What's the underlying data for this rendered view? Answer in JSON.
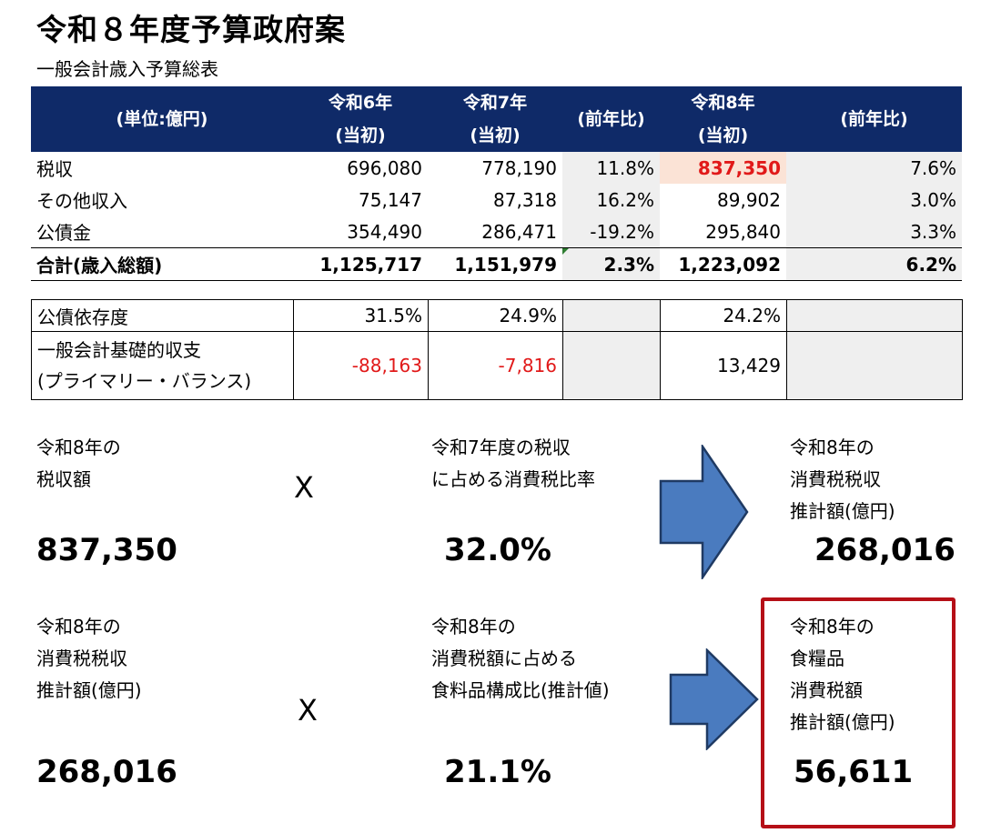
{
  "page": {
    "title": "令和８年度予算政府案",
    "subtitle": "一般会計歳入予算総表"
  },
  "main_table": {
    "headers": [
      {
        "line1": "(単位:億円)",
        "line2": ""
      },
      {
        "line1": "令和6年",
        "line2": "(当初)"
      },
      {
        "line1": "令和7年",
        "line2": "(当初)"
      },
      {
        "line1": "(前年比)",
        "line2": ""
      },
      {
        "line1": "令和8年",
        "line2": "(当初)"
      },
      {
        "line1": "(前年比)",
        "line2": ""
      }
    ],
    "rows": [
      {
        "label": "税収",
        "r6": "696,080",
        "r7": "778,190",
        "yoy7": "11.8%",
        "r8": "837,350",
        "yoy8": "7.6%"
      },
      {
        "label": "その他収入",
        "r6": "75,147",
        "r7": "87,318",
        "yoy7": "16.2%",
        "r8": "89,902",
        "yoy8": "3.0%"
      },
      {
        "label": "公債金",
        "r6": "354,490",
        "r7": "286,471",
        "yoy7": "-19.2%",
        "r8": "295,840",
        "yoy8": "3.3%"
      },
      {
        "label": "合計(歳入総額)",
        "r6": "1,125,717",
        "r7": "1,151,979",
        "yoy7": "2.3%",
        "r8": "1,223,092",
        "yoy8": "6.2%"
      }
    ]
  },
  "sub_table": {
    "rows": [
      {
        "label1": "公債依存度",
        "label2": "",
        "r6": "31.5%",
        "r7": "24.9%",
        "r8": "24.2%"
      },
      {
        "label1": "一般会計基礎的収支",
        "label2": "(プライマリー・バランス)",
        "r6": "-88,163",
        "r7": "-7,816",
        "r8": "13,429"
      }
    ]
  },
  "calc1": {
    "a_lines": [
      "令和8年の",
      "税収額"
    ],
    "a_value": "837,350",
    "op": "X",
    "b_lines": [
      "令和7年度の税収",
      "に占める消費税比率"
    ],
    "b_value": "32.0%",
    "c_lines": [
      "令和8年の",
      "消費税税収",
      "推計額(億円)"
    ],
    "c_value": "268,016"
  },
  "calc2": {
    "a_lines": [
      "令和8年の",
      "消費税税収",
      "推計額(億円)"
    ],
    "a_value": "268,016",
    "op": "X",
    "b_lines": [
      "令和8年の",
      "消費税額に占める",
      "食料品構成比(推計値)"
    ],
    "b_value": "21.1%",
    "c_lines": [
      "令和8年の",
      "食糧品",
      "消費税額",
      "推計額(億円)"
    ],
    "c_value": "56,611"
  },
  "colors": {
    "header_bg": "#0f2a68",
    "arrow": "#4a7bbf",
    "highlight_box": "#b50f17",
    "negative": "#e11919",
    "highlight_cell": "#fbe3d6"
  }
}
